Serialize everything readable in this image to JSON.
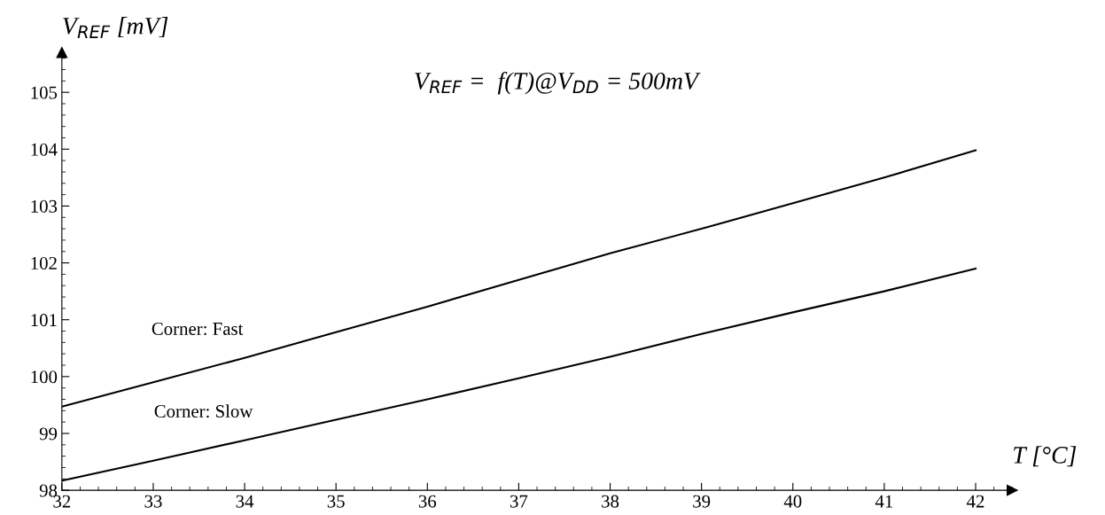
{
  "chart_data": {
    "type": "line",
    "title": "V$_{REF}$ =  f(T)@V$_{DD}$ = 500mV",
    "xlabel": "T [°C]",
    "ylabel": "V$_{REF}$ [mV]",
    "x": [
      32,
      33,
      34,
      35,
      36,
      37,
      38,
      39,
      40,
      41,
      42
    ],
    "series": [
      {
        "name": "Corner: Fast",
        "color": "#000000",
        "values": [
          99.47,
          99.9,
          100.33,
          100.78,
          101.23,
          101.7,
          102.17,
          102.6,
          103.05,
          103.5,
          103.98
        ]
      },
      {
        "name": "Corner: Slow",
        "color": "#000000",
        "values": [
          98.17,
          98.52,
          98.88,
          99.24,
          99.6,
          99.97,
          100.35,
          100.75,
          101.13,
          101.5,
          101.9
        ]
      }
    ],
    "xlim": [
      32,
      42.4
    ],
    "ylim": [
      98,
      105.7
    ],
    "xticks": [
      32,
      33,
      34,
      35,
      36,
      37,
      38,
      39,
      40,
      41,
      42
    ],
    "yticks": [
      98,
      99,
      100,
      101,
      102,
      103,
      104,
      105
    ],
    "grid": false,
    "legend": false,
    "marker": "none",
    "line_style": "solid"
  }
}
